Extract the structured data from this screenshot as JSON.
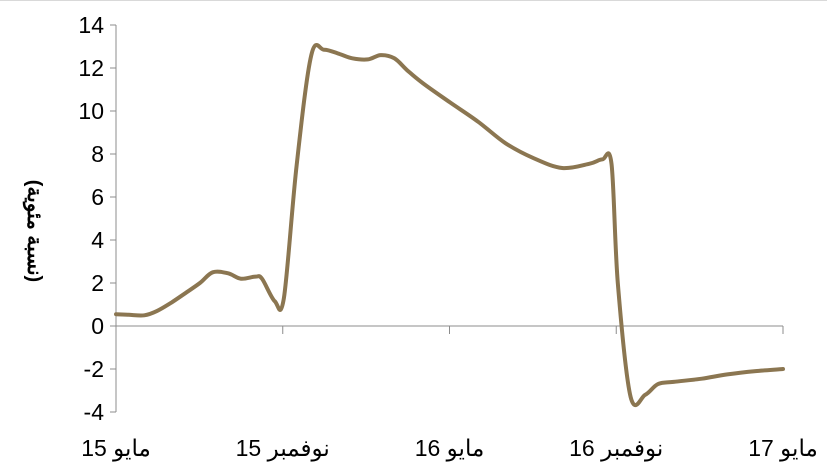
{
  "chart_data": {
    "type": "line",
    "title": "",
    "ylabel": "(نسبة مئوية)",
    "xlabel": "",
    "ylim": [
      -4,
      14
    ],
    "yticks": [
      -4,
      -2,
      0,
      2,
      4,
      6,
      8,
      10,
      12,
      14
    ],
    "x_tick_labels": [
      "مايو 15",
      "نوفمبر 15",
      "مايو 16",
      "نوفمبر 16",
      "مايو 17"
    ],
    "grid": false,
    "legend": "none",
    "series": [
      {
        "color": "#8b7651",
        "points": [
          {
            "x": "2015-05",
            "y": 0.55
          },
          {
            "x": "2015-05-15",
            "y": 0.52
          },
          {
            "x": "2015-06",
            "y": 0.5
          },
          {
            "x": "2015-06-15",
            "y": 0.7
          },
          {
            "x": "2015-07",
            "y": 1.1
          },
          {
            "x": "2015-07-15",
            "y": 1.5
          },
          {
            "x": "2015-08",
            "y": 2.0
          },
          {
            "x": "2015-08-15",
            "y": 2.5
          },
          {
            "x": "2015-09",
            "y": 2.45
          },
          {
            "x": "2015-09-15",
            "y": 2.2
          },
          {
            "x": "2015-10",
            "y": 2.3
          },
          {
            "x": "2015-10-08",
            "y": 2.2
          },
          {
            "x": "2015-10-22",
            "y": 1.15
          },
          {
            "x": "2015-11",
            "y": 1.3
          },
          {
            "x": "2015-11-15",
            "y": 7.5
          },
          {
            "x": "2015-12",
            "y": 12.6
          },
          {
            "x": "2015-12-15",
            "y": 12.85
          },
          {
            "x": "2016-01",
            "y": 12.65
          },
          {
            "x": "2016-01-15",
            "y": 12.45
          },
          {
            "x": "2016-02",
            "y": 12.4
          },
          {
            "x": "2016-02-15",
            "y": 12.6
          },
          {
            "x": "2016-03",
            "y": 12.45
          },
          {
            "x": "2016-03-15",
            "y": 11.9
          },
          {
            "x": "2016-04",
            "y": 11.3
          },
          {
            "x": "2016-05",
            "y": 10.4
          },
          {
            "x": "2016-06",
            "y": 9.5
          },
          {
            "x": "2016-07",
            "y": 8.5
          },
          {
            "x": "2016-08",
            "y": 7.8
          },
          {
            "x": "2016-09",
            "y": 7.35
          },
          {
            "x": "2016-10",
            "y": 7.55
          },
          {
            "x": "2016-10-15",
            "y": 7.75
          },
          {
            "x": "2016-10-25",
            "y": 7.55
          },
          {
            "x": "2016-11",
            "y": 2.0
          },
          {
            "x": "2016-11-15",
            "y": -3.3
          },
          {
            "x": "2016-12",
            "y": -3.2
          },
          {
            "x": "2016-12-15",
            "y": -2.7
          },
          {
            "x": "2017-01",
            "y": -2.6
          },
          {
            "x": "2017-02",
            "y": -2.45
          },
          {
            "x": "2017-03",
            "y": -2.25
          },
          {
            "x": "2017-04",
            "y": -2.1
          },
          {
            "x": "2017-05",
            "y": -2.0
          }
        ]
      }
    ]
  }
}
